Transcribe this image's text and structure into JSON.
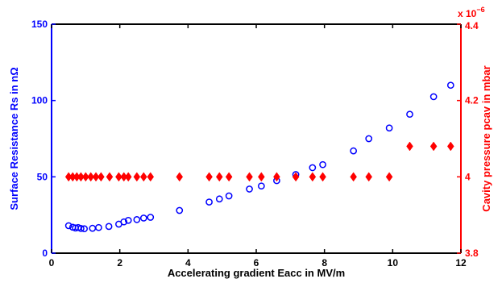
{
  "chart_data": {
    "type": "scatter",
    "xlabel": "Accelerating gradient Eacc in MV/m",
    "ylabel_left": "Surface Resistance Rs in nΩ",
    "ylabel_right": "Cavity pressure pcav in mbar",
    "right_axis_multiplier": "x 10",
    "right_axis_exponent": "−6",
    "xlim": [
      0,
      12
    ],
    "ylim_left": [
      0,
      150
    ],
    "ylim_right": [
      3.8,
      4.4
    ],
    "x_ticks": [
      "0",
      "2",
      "4",
      "6",
      "8",
      "10",
      "12"
    ],
    "y_ticks_left": [
      "0",
      "50",
      "100",
      "150"
    ],
    "y_ticks_right": [
      "3.8",
      "4",
      "4.2",
      "4.4"
    ],
    "grid": false,
    "colors": {
      "left": "#0000ff",
      "right": "#ff0000",
      "axes": "#000000"
    },
    "series": [
      {
        "axis": "left",
        "marker": "circle",
        "color": "#0000ff",
        "x": [
          0.5,
          0.62,
          0.7,
          0.78,
          0.86,
          0.96,
          1.2,
          1.38,
          1.68,
          1.97,
          2.12,
          2.25,
          2.5,
          2.7,
          2.9,
          3.75,
          4.62,
          4.92,
          5.2,
          5.8,
          6.15,
          6.6,
          7.16,
          7.65,
          7.95,
          8.85,
          9.3,
          9.9,
          10.5,
          11.2,
          11.7
        ],
        "y": [
          18,
          17,
          16.5,
          16.8,
          16.2,
          16,
          16.3,
          16.8,
          17.5,
          19,
          20.5,
          21.5,
          22,
          23,
          23.5,
          28,
          33.5,
          35.5,
          37.5,
          42,
          44,
          47.5,
          51.5,
          56,
          58,
          67,
          75,
          82,
          91,
          102.5,
          110
        ]
      },
      {
        "axis": "right",
        "marker": "diamond",
        "color": "#ff0000",
        "x": [
          0.5,
          0.62,
          0.74,
          0.86,
          1.0,
          1.15,
          1.3,
          1.45,
          1.7,
          1.97,
          2.12,
          2.25,
          2.5,
          2.7,
          2.9,
          3.75,
          4.62,
          4.92,
          5.2,
          5.8,
          6.15,
          6.6,
          7.16,
          7.65,
          7.95,
          8.85,
          9.3,
          9.9,
          10.5,
          11.2,
          11.7
        ],
        "y": [
          4.0,
          4.0,
          4.0,
          4.0,
          4.0,
          4.0,
          4.0,
          4.0,
          4.0,
          4.0,
          4.0,
          4.0,
          4.0,
          4.0,
          4.0,
          4.0,
          4.0,
          4.0,
          4.0,
          4.0,
          4.0,
          4.0,
          4.0,
          4.0,
          4.0,
          4.0,
          4.0,
          4.0,
          4.08,
          4.08,
          4.08
        ]
      }
    ]
  }
}
